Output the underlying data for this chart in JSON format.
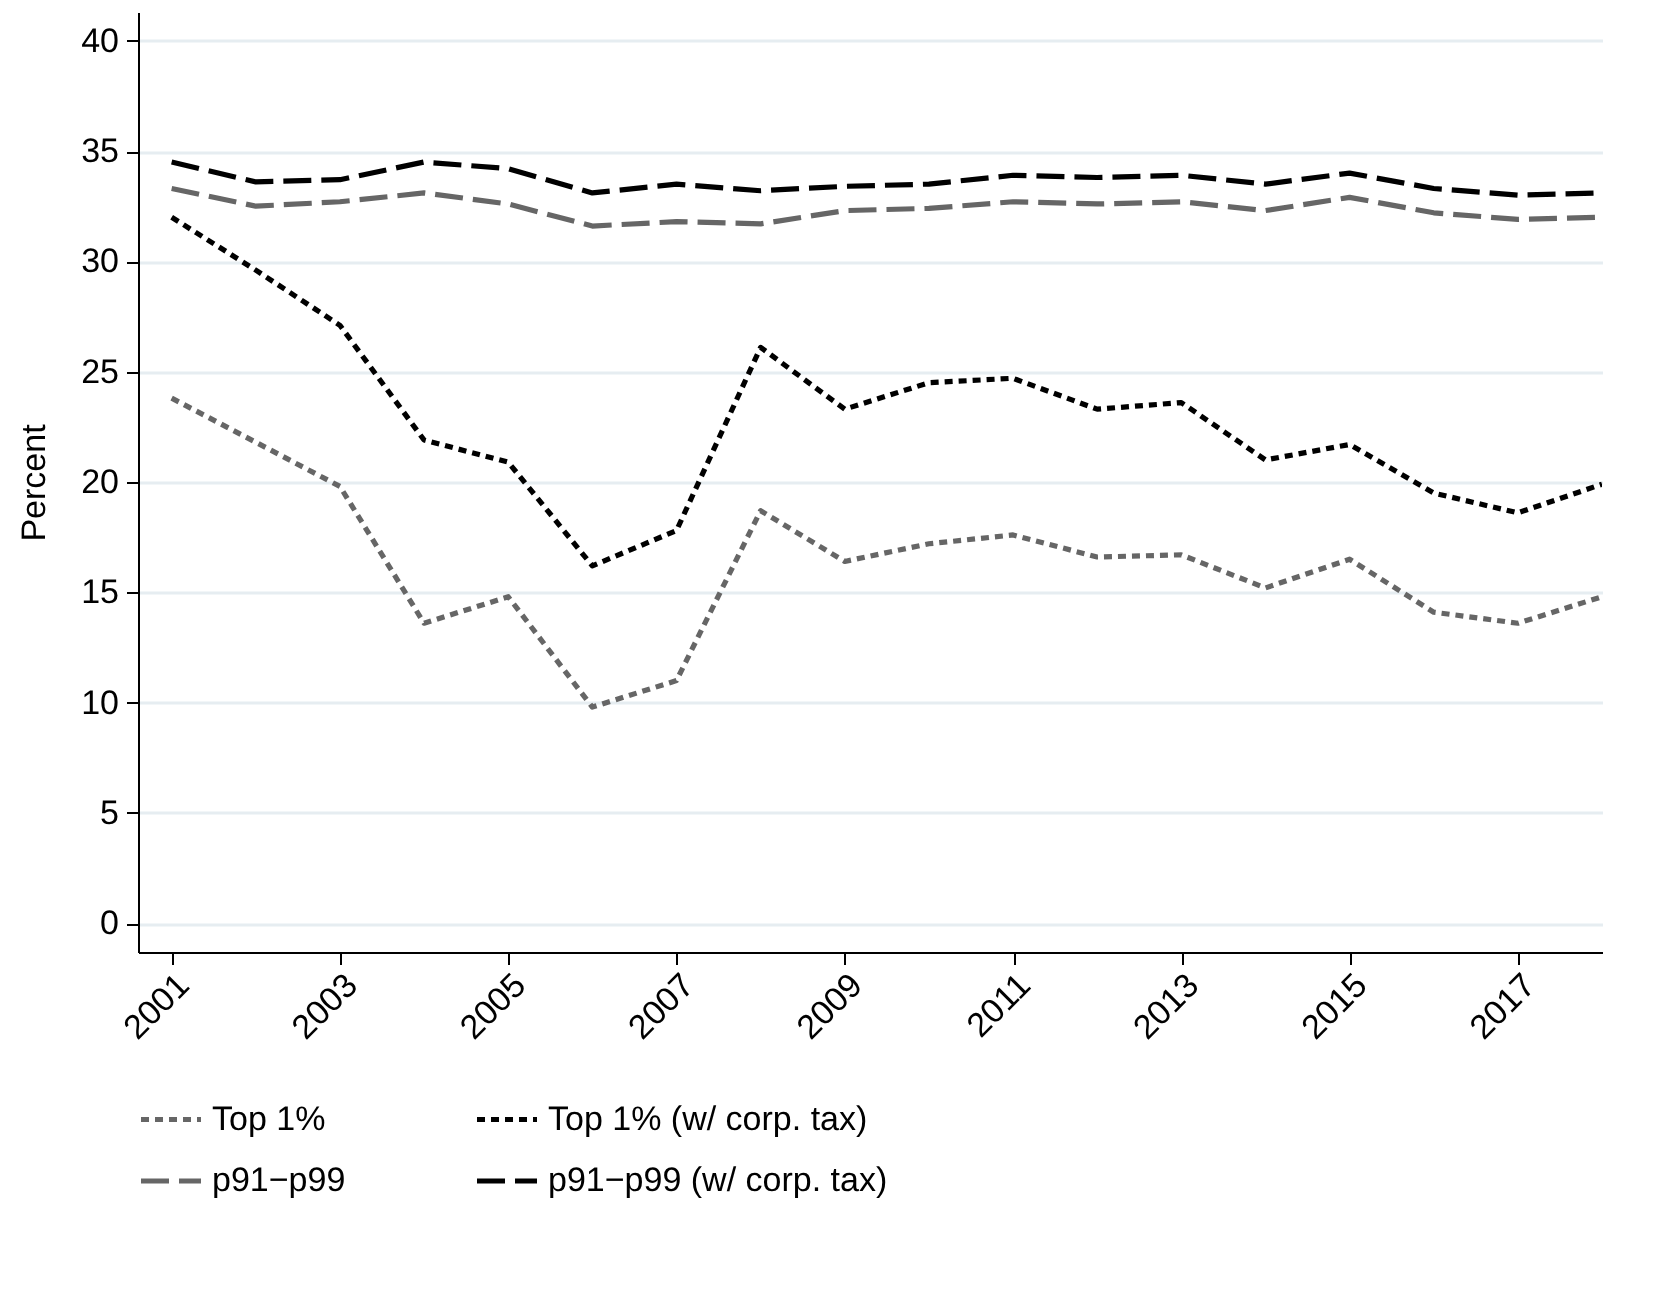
{
  "chart_data": {
    "type": "line",
    "ylabel": "Percent",
    "x": [
      2001,
      2002,
      2003,
      2004,
      2005,
      2006,
      2007,
      2008,
      2009,
      2010,
      2011,
      2012,
      2013,
      2014,
      2015,
      2016,
      2017,
      2018
    ],
    "xlim": [
      2000.6,
      2018
    ],
    "xticks": [
      2001,
      2003,
      2005,
      2007,
      2009,
      2011,
      2013,
      2015,
      2017
    ],
    "ylim": [
      -1.3,
      41.3
    ],
    "yticks": [
      0,
      5,
      10,
      15,
      20,
      25,
      30,
      35,
      40
    ],
    "grid": "y",
    "legend": "bottom",
    "marker": "none",
    "series": [
      {
        "name": "Top 1%",
        "color": "#666666",
        "line_style": "dotted",
        "values": [
          23.8,
          21.8,
          19.8,
          13.6,
          14.8,
          9.8,
          11.0,
          18.7,
          16.4,
          17.2,
          17.6,
          16.6,
          16.7,
          15.2,
          16.5,
          14.1,
          13.6,
          14.8
        ]
      },
      {
        "name": "Top 1% (w/ corp. tax)",
        "color": "#000000",
        "line_style": "dotted",
        "values": [
          32.0,
          29.6,
          27.1,
          21.9,
          20.9,
          16.2,
          17.8,
          26.1,
          23.3,
          24.5,
          24.7,
          23.3,
          23.6,
          21.0,
          21.7,
          19.5,
          18.6,
          19.9
        ]
      },
      {
        "name": "p91−p99",
        "color": "#666666",
        "line_style": "dashed",
        "values": [
          33.3,
          32.5,
          32.7,
          33.1,
          32.6,
          31.6,
          31.8,
          31.7,
          32.3,
          32.4,
          32.7,
          32.6,
          32.7,
          32.3,
          32.9,
          32.2,
          31.9,
          32.0
        ]
      },
      {
        "name": "p91−p99 (w/ corp. tax)",
        "color": "#000000",
        "line_style": "dashed",
        "values": [
          34.5,
          33.6,
          33.7,
          34.5,
          34.2,
          33.1,
          33.5,
          33.2,
          33.4,
          33.5,
          33.9,
          33.8,
          33.9,
          33.5,
          34.0,
          33.3,
          33.0,
          33.1
        ]
      }
    ]
  }
}
